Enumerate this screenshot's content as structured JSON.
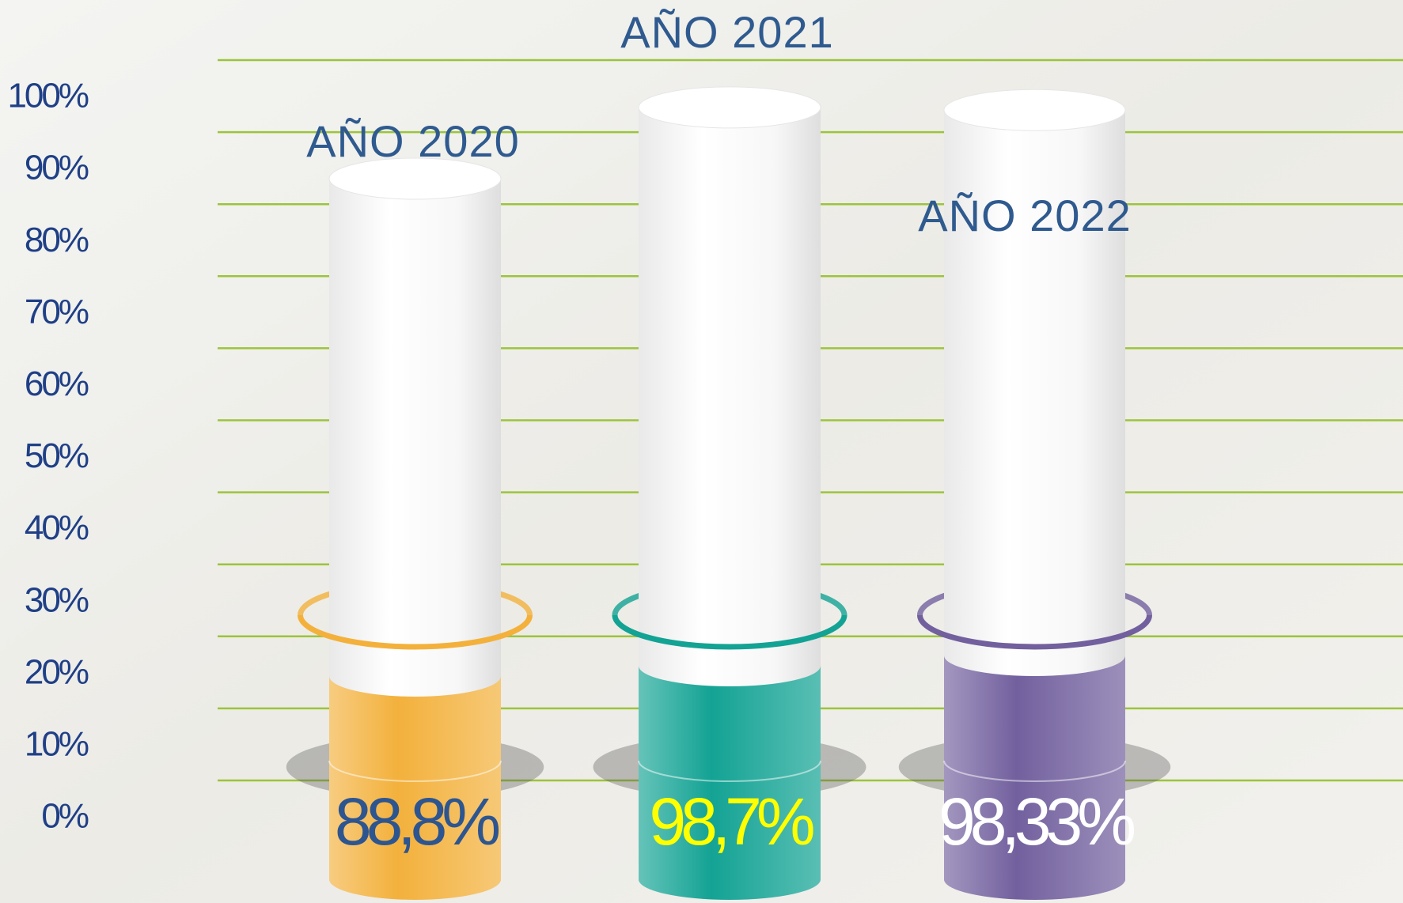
{
  "chart_data": {
    "type": "bar",
    "categories": [
      "AÑO 2020",
      "AÑO 2021",
      "AÑO 2022"
    ],
    "values": [
      88.8,
      98.7,
      98.33
    ],
    "value_labels": [
      "88,8%",
      "98,7%",
      "98,33%"
    ],
    "colors": [
      "#f3b13c",
      "#13a394",
      "#72609e"
    ],
    "label_colors": [
      "#2d5590",
      "#ffff00",
      "#ffffff"
    ],
    "ylim": [
      0,
      100
    ],
    "yticks": [
      {
        "value": 0,
        "label": "0%"
      },
      {
        "value": 10,
        "label": "10%"
      },
      {
        "value": 20,
        "label": "20%"
      },
      {
        "value": 30,
        "label": "30%"
      },
      {
        "value": 40,
        "label": "40%"
      },
      {
        "value": 50,
        "label": "50%"
      },
      {
        "value": 60,
        "label": "60%"
      },
      {
        "value": 70,
        "label": "70%"
      },
      {
        "value": 80,
        "label": "80%"
      },
      {
        "value": 90,
        "label": "90%"
      },
      {
        "value": 100,
        "label": "100%"
      }
    ],
    "grid": true
  }
}
